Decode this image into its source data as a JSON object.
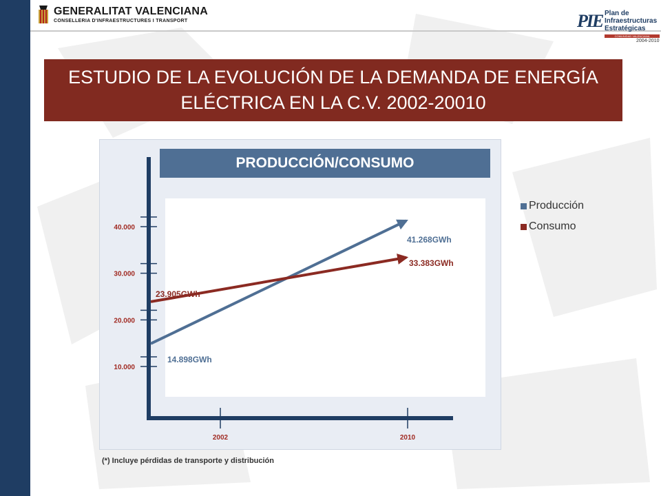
{
  "header": {
    "left_logo": {
      "title": "GENERALITAT VALENCIANA",
      "subtitle": "CONSELLERIA D'INFRAESTRUCTURES I TRANSPORT"
    },
    "right_logo": {
      "mark": "PIE",
      "line1": "Plan de",
      "line2": "Infraestructuras",
      "line3": "Estratégicas",
      "band": "COMUNIDAD VALENCIANA",
      "years": "2004-2010"
    }
  },
  "slide": {
    "title": "ESTUDIO DE LA EVOLUCIÓN DE LA DEMANDA DE ENERGÍA ELÉCTRICA EN LA C.V. 2002-20010",
    "footnote": "(*) Incluye pérdidas de transporte y distribución"
  },
  "colors": {
    "accent": "#812a20",
    "navy": "#1f3d63",
    "produccion": "#4f6f94",
    "consumo": "#8b2a22"
  },
  "chart_data": {
    "type": "line",
    "title": "PRODUCCIÓN/CONSUMO",
    "categories": [
      "2002",
      "2010"
    ],
    "yticks": [
      "10.000",
      "20.000",
      "30.000",
      "40.000"
    ],
    "ylim": [
      0,
      45000
    ],
    "series": [
      {
        "name": "Producción",
        "values": [
          14898,
          41268
        ],
        "labels": [
          "14.898GWh",
          "41.268GWh"
        ],
        "color": "#4f6f94"
      },
      {
        "name": "Consumo",
        "values": [
          23905,
          33383
        ],
        "labels": [
          "23.905GWh",
          "33.383GWh"
        ],
        "color": "#8b2a22"
      }
    ]
  }
}
